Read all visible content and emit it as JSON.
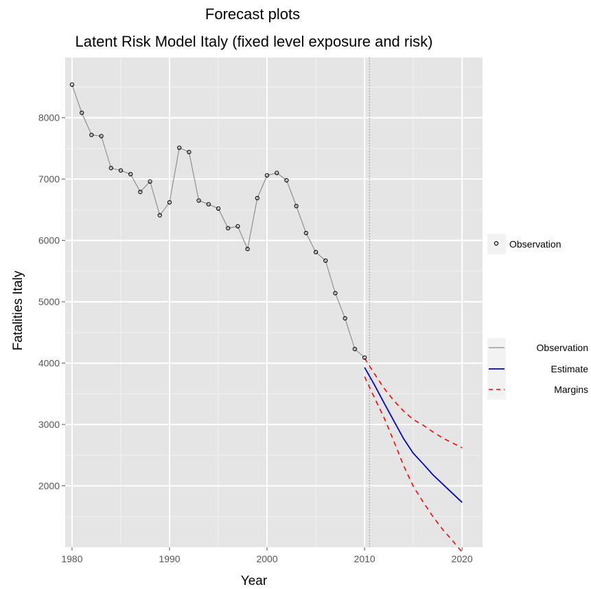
{
  "chart_data": {
    "type": "line",
    "title": "Forecast plots",
    "subtitle": "Latent Risk Model Italy (fixed level exposure and risk)",
    "xlabel": "Year",
    "ylabel": "Fatalities Italy",
    "xlim": [
      1979.3,
      2022.1
    ],
    "ylim": [
      1000,
      8980
    ],
    "x_ticks": [
      1980,
      1990,
      2000,
      2010,
      2020
    ],
    "y_ticks": [
      2000,
      3000,
      4000,
      5000,
      6000,
      7000,
      8000
    ],
    "grid": true,
    "vline": 2010.5,
    "legend_points": {
      "placement": "right",
      "entries": [
        {
          "label": "Observation",
          "kind": "point"
        }
      ]
    },
    "legend_lines": {
      "placement": "right",
      "entries": [
        {
          "label": "Observation",
          "kind": "line",
          "color": "#888888"
        },
        {
          "label": "Estimate",
          "kind": "line",
          "color": "#0000cc"
        },
        {
          "label": "Margins",
          "kind": "dashed",
          "color": "#ff0000"
        }
      ]
    },
    "series": [
      {
        "name": "Observation",
        "color": "#888888",
        "x": [
          1980,
          1981,
          1982,
          1983,
          1984,
          1985,
          1986,
          1987,
          1988,
          1989,
          1990,
          1991,
          1992,
          1993,
          1994,
          1995,
          1996,
          1997,
          1998,
          1999,
          2000,
          2001,
          2002,
          2003,
          2004,
          2005,
          2006,
          2007,
          2008,
          2009,
          2010
        ],
        "y": [
          8540,
          8080,
          7720,
          7700,
          7180,
          7140,
          7080,
          6790,
          6960,
          6410,
          6620,
          7510,
          7440,
          6650,
          6590,
          6520,
          6200,
          6230,
          5860,
          6690,
          7060,
          7100,
          6980,
          6560,
          6120,
          5810,
          5670,
          5140,
          4730,
          4230,
          4090
        ]
      },
      {
        "name": "Estimate",
        "color": "#0000cc",
        "x": [
          2010,
          2011,
          2012,
          2013,
          2014,
          2015,
          2016,
          2017,
          2018,
          2019,
          2020
        ],
        "y": [
          3930,
          3650,
          3350,
          3060,
          2770,
          2530,
          2360,
          2180,
          2030,
          1880,
          1730
        ]
      },
      {
        "name": "Margins",
        "color": "#ff0000",
        "upper": {
          "x": [
            2010,
            2011,
            2012,
            2013,
            2014,
            2015,
            2016,
            2017,
            2018,
            2019,
            2020
          ],
          "y": [
            4080,
            3830,
            3590,
            3390,
            3220,
            3080,
            2990,
            2880,
            2780,
            2700,
            2620
          ]
        },
        "lower": {
          "x": [
            2010,
            2011,
            2012,
            2013,
            2014,
            2015,
            2016,
            2017,
            2018,
            2019,
            2020
          ],
          "y": [
            3780,
            3440,
            3110,
            2730,
            2330,
            1990,
            1740,
            1500,
            1290,
            1110,
            920
          ]
        }
      }
    ]
  }
}
